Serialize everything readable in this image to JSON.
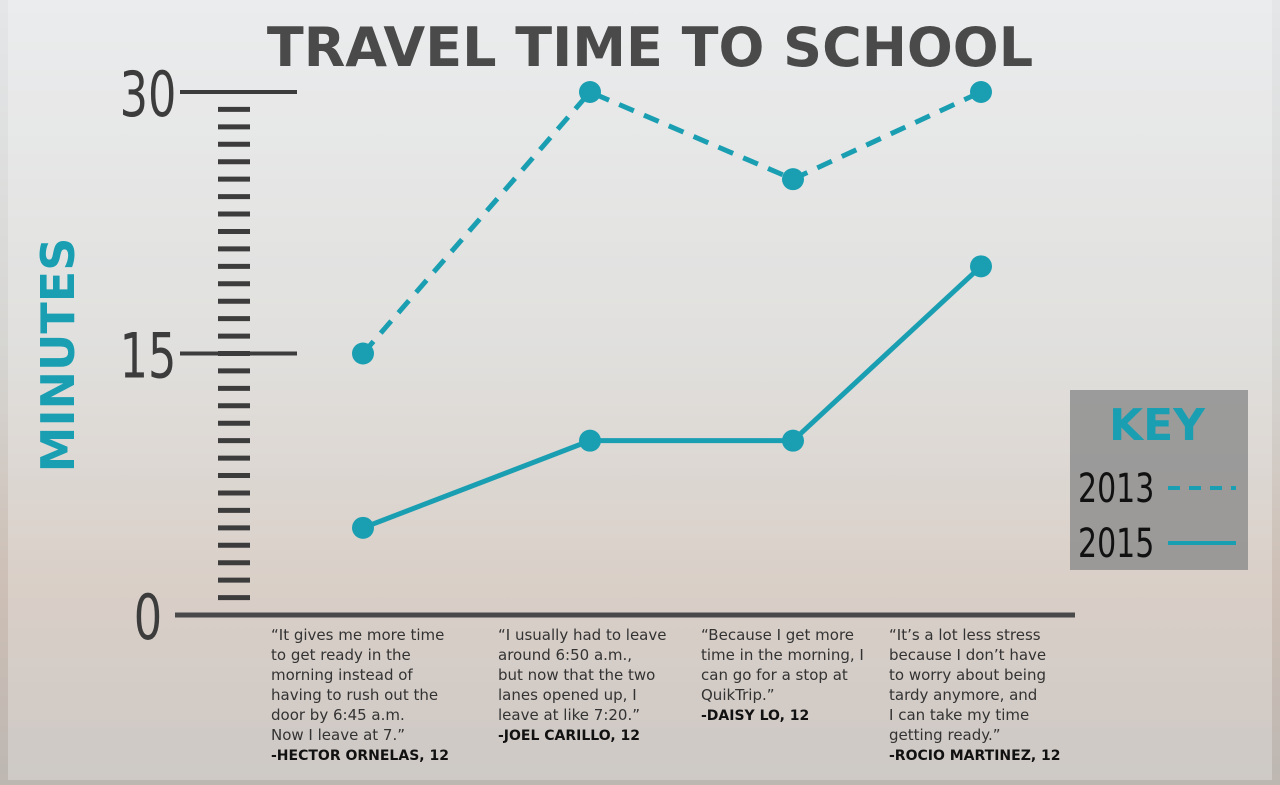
{
  "chart_data": {
    "type": "line",
    "title": "TRAVEL TIME TO SCHOOL",
    "y_label": "MINUTES",
    "categories": [
      null,
      null,
      null,
      null
    ],
    "series": [
      {
        "name": "2013",
        "color": "#1a9fb2",
        "dash": true,
        "values": [
          15,
          30,
          25,
          30
        ]
      },
      {
        "name": "2015",
        "color": "#1a9fb2",
        "dash": false,
        "values": [
          5,
          10,
          10,
          20
        ]
      }
    ],
    "ylim": [
      0,
      30
    ],
    "yticks": [
      0,
      15,
      30
    ],
    "minor_yticks": [
      1,
      2,
      3,
      4,
      5,
      6,
      7,
      8,
      9,
      10,
      11,
      12,
      13,
      14,
      15,
      16,
      17,
      18,
      19,
      20,
      21,
      22,
      23,
      24,
      25,
      26,
      27,
      28,
      29
    ],
    "legend_title": "KEY",
    "legend": "right",
    "annotations": [
      {
        "text": [
          "“It gives me more time",
          "to get ready in the",
          "morning instead of",
          "having to rush out the",
          "door by 6:45 a.m.",
          "Now I leave at 7.”"
        ],
        "author": "-HECTOR ORNELAS, 12"
      },
      {
        "text": [
          "“I usually had to leave",
          "around 6:50 a.m.,",
          "but now that the two",
          "lanes opened up, I",
          "leave at like 7:20.”"
        ],
        "author": "-JOEL CARILLO, 12"
      },
      {
        "text": [
          "“Because I get more",
          "time in the morning, I",
          "can go for a stop at",
          "QuikTrip.”"
        ],
        "author": "-DAISY LO, 12"
      },
      {
        "text": [
          "“It’s a lot less stress",
          "because I don’t have",
          "to worry about being",
          "tardy anymore, and",
          "I can take my time",
          "getting ready.”"
        ],
        "author": "-ROCIO MARTINEZ, 12"
      }
    ]
  }
}
